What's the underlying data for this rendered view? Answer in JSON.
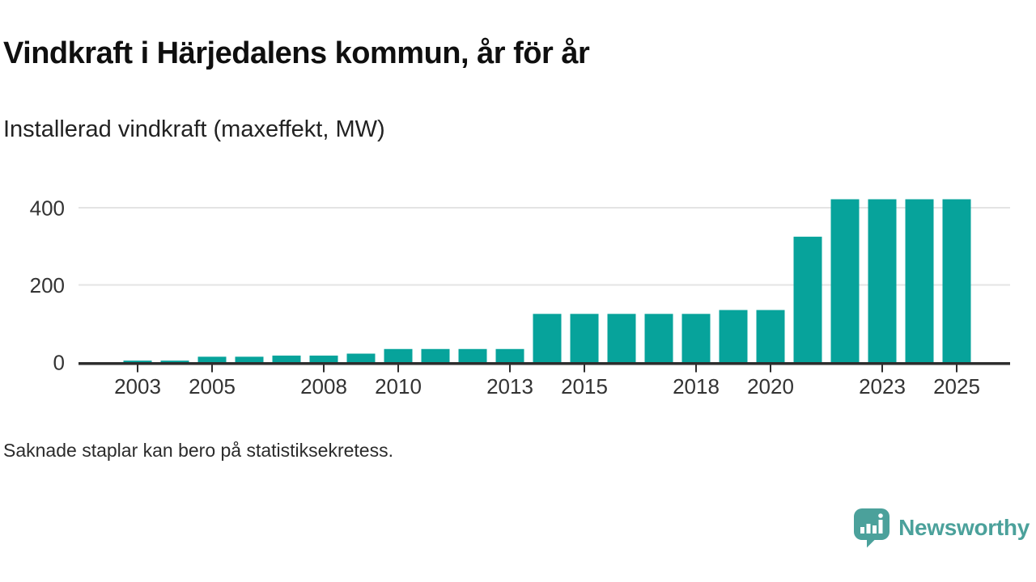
{
  "header": {
    "title": "Vindkraft i Härjedalens kommun, år för år",
    "subtitle": "Installerad vindkraft (maxeffekt, MW)"
  },
  "footnote": "Saknade staplar kan bero på statistiksekretess.",
  "branding": {
    "name": "Newsworthy",
    "logo_icon": "speech-bubble-bar-chart-icon",
    "color": "#4ba19b"
  },
  "colors": {
    "bar": "#07a39b",
    "axis": "#2d2d2d",
    "grid": "#e4e4e4",
    "tick_label": "#333333",
    "title": "#0f0f0f",
    "subtitle": "#222222"
  },
  "chart_data": {
    "type": "bar",
    "title": "Vindkraft i Härjedalens kommun, år för år",
    "subtitle": "Installerad vindkraft (maxeffekt, MW)",
    "xlabel": "",
    "ylabel": "Installerad vindkraft (maxeffekt, MW)",
    "unit": "MW",
    "x": [
      2003,
      2004,
      2005,
      2006,
      2007,
      2008,
      2009,
      2010,
      2011,
      2012,
      2013,
      2014,
      2015,
      2016,
      2017,
      2018,
      2019,
      2020,
      2021,
      2022,
      2023,
      2024,
      2025
    ],
    "values": [
      4,
      4,
      14,
      14,
      17,
      17,
      22,
      34,
      34,
      34,
      34,
      125,
      125,
      125,
      125,
      125,
      135,
      135,
      325,
      422,
      422,
      422,
      422
    ],
    "ylim": [
      0,
      440
    ],
    "yticks": [
      0,
      200,
      400
    ],
    "xticks": [
      2003,
      2005,
      2008,
      2010,
      2013,
      2015,
      2018,
      2020,
      2023,
      2025
    ],
    "grid": "horizontal-y",
    "legend": "none"
  }
}
